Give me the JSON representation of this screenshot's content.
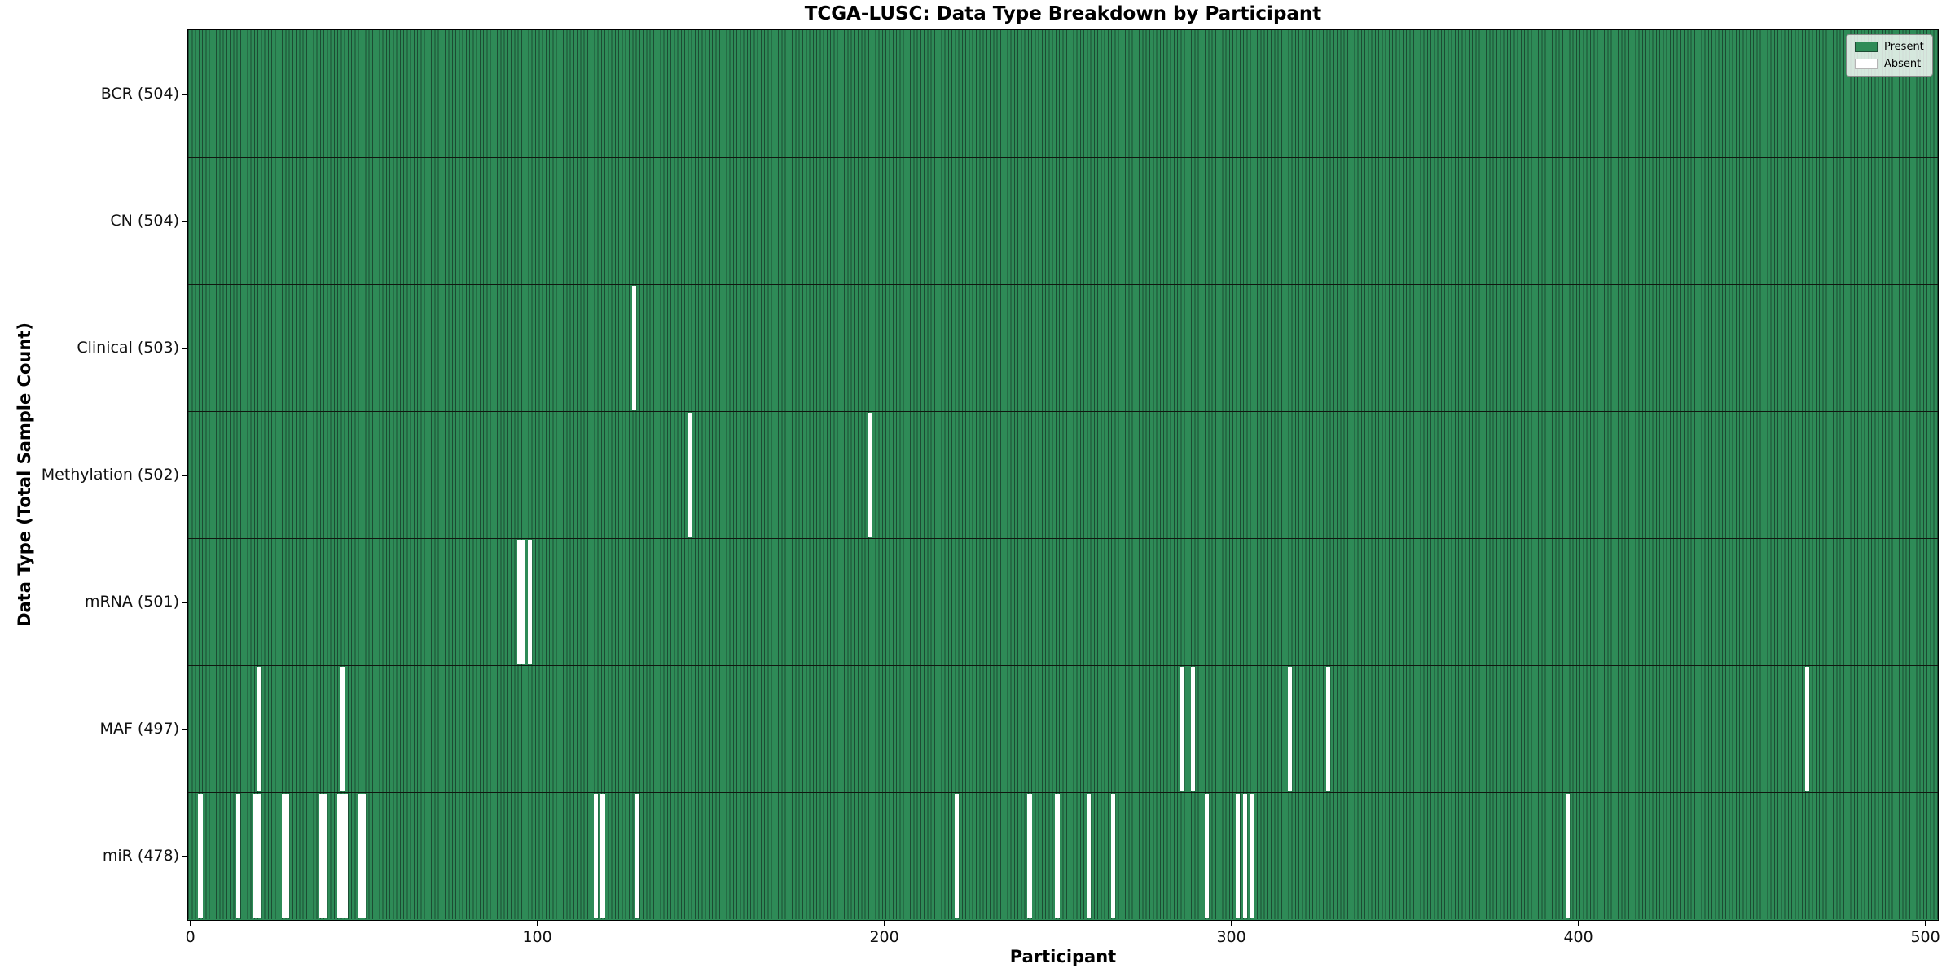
{
  "chart_data": {
    "type": "heatmap",
    "title": "TCGA-LUSC: Data Type Breakdown by Participant",
    "xlabel": "Participant",
    "ylabel": "Data Type (Total Sample Count)",
    "x_ticks": [
      0,
      100,
      200,
      300,
      400,
      500
    ],
    "xlim": [
      -0.5,
      503.5
    ],
    "n_participants": 504,
    "grid": false,
    "legend_position": "upper right",
    "legend": {
      "present_label": "Present",
      "absent_label": "Absent"
    },
    "colors": {
      "present": "#2e8b57",
      "bar_edge": "#1c4c33",
      "absent": "#ffffff"
    },
    "rows": [
      {
        "label": "BCR (504)",
        "total": 504,
        "absent_participants": []
      },
      {
        "label": "CN (504)",
        "total": 504,
        "absent_participants": []
      },
      {
        "label": "Clinical (503)",
        "total": 503,
        "absent_participants": [
          128
        ]
      },
      {
        "label": "Methylation (502)",
        "total": 502,
        "absent_participants": [
          144,
          196
        ]
      },
      {
        "label": "mRNA (501)",
        "total": 501,
        "absent_participants": [
          95,
          96,
          98
        ]
      },
      {
        "label": "MAF (497)",
        "total": 497,
        "absent_participants": [
          20,
          44,
          286,
          289,
          317,
          328,
          466
        ]
      },
      {
        "label": "miR (478)",
        "total": 478,
        "absent_participants": [
          3,
          14,
          19,
          20,
          27,
          28,
          38,
          39,
          43,
          44,
          45,
          49,
          50,
          117,
          119,
          129,
          221,
          242,
          250,
          259,
          266,
          293,
          302,
          304,
          306,
          397
        ]
      }
    ]
  }
}
